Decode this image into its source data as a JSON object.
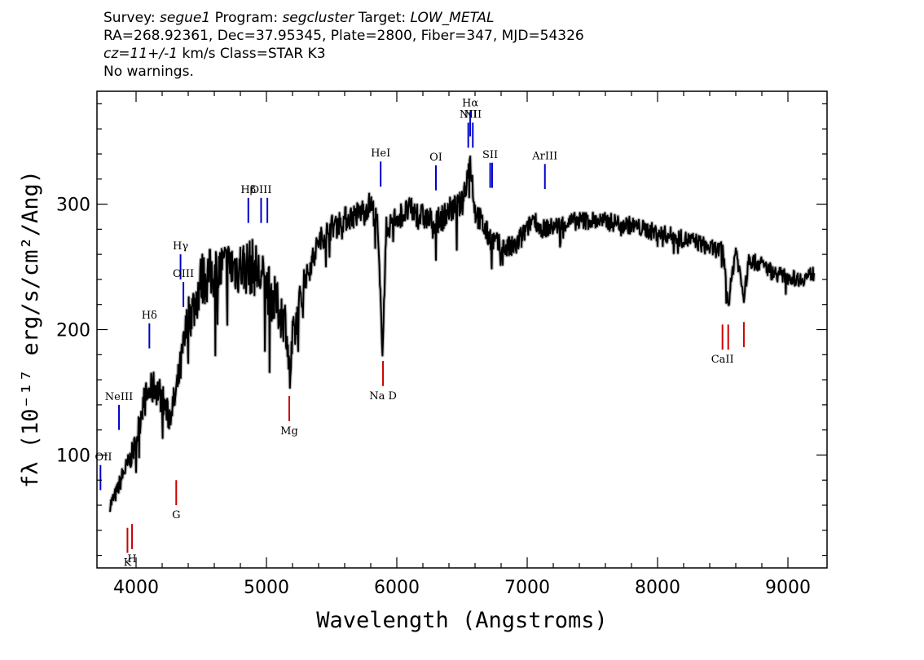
{
  "header": {
    "line1": {
      "survey_label": "Survey: ",
      "survey": "segue1",
      "program_label": " Program: ",
      "program": "segcluster",
      "target_label": " Target: ",
      "target": "LOW_METAL"
    },
    "line2": "RA=268.92361, Dec=37.95345, Plate=2800, Fiber=347, MJD=54326",
    "line3": {
      "cz": "cz=11+/-1",
      "rest": " km/s Class=STAR K3"
    },
    "line4": "No warnings."
  },
  "chart_data": {
    "type": "line",
    "xlabel": "Wavelength (Angstroms)",
    "ylabel": "fλ (10⁻¹⁷ erg/s/cm²/Ang)",
    "xlim": [
      3700,
      9300
    ],
    "ylim": [
      10,
      390
    ],
    "x_ticks": [
      4000,
      5000,
      6000,
      7000,
      8000,
      9000
    ],
    "y_ticks": [
      100,
      200,
      300
    ],
    "grid": false,
    "series": [
      {
        "color": "#000000",
        "x": [
          3800,
          3850,
          3900,
          3950,
          4000,
          4050,
          4100,
          4150,
          4200,
          4250,
          4300,
          4350,
          4400,
          4450,
          4500,
          4600,
          4700,
          4800,
          4900,
          5000,
          5100,
          5150,
          5180,
          5200,
          5300,
          5400,
          5500,
          5600,
          5700,
          5800,
          5850,
          5890,
          5920,
          6000,
          6100,
          6200,
          6300,
          6400,
          6500,
          6563,
          6600,
          6700,
          6800,
          6900,
          7000,
          7050,
          7100,
          7200,
          7300,
          7400,
          7500,
          7600,
          7700,
          7800,
          7900,
          8000,
          8100,
          8200,
          8300,
          8400,
          8500,
          8542,
          8600,
          8662,
          8700,
          8800,
          8900,
          9000,
          9100,
          9200
        ],
        "y": [
          60,
          70,
          85,
          95,
          110,
          140,
          150,
          155,
          145,
          130,
          145,
          175,
          210,
          220,
          240,
          245,
          250,
          250,
          250,
          235,
          215,
          205,
          160,
          190,
          240,
          270,
          282,
          288,
          292,
          300,
          285,
          185,
          280,
          290,
          295,
          290,
          285,
          295,
          300,
          335,
          295,
          275,
          265,
          265,
          280,
          290,
          280,
          282,
          285,
          287,
          287,
          286,
          285,
          283,
          280,
          277,
          275,
          272,
          270,
          265,
          263,
          220,
          265,
          225,
          255,
          252,
          245,
          242,
          240,
          245
        ]
      }
    ],
    "lines": [
      {
        "label": "OII",
        "x": 3727,
        "color": "#0000cc",
        "y1": 72,
        "y2": 92,
        "label_side": "top"
      },
      {
        "label": "NeIII",
        "x": 3869,
        "color": "#0000cc",
        "y1": 120,
        "y2": 140,
        "label_side": "top"
      },
      {
        "label": "Hδ",
        "x": 4102,
        "color": "#0000cc",
        "y1": 185,
        "y2": 205,
        "label_side": "top"
      },
      {
        "label": "Hγ",
        "x": 4341,
        "color": "#0000cc",
        "y1": 240,
        "y2": 260,
        "label_side": "top"
      },
      {
        "label": "OIII",
        "x": 4363,
        "color": "#0000cc",
        "y1": 218,
        "y2": 238,
        "label_side": "top"
      },
      {
        "label": "Hβ",
        "x": 4861,
        "color": "#0000cc",
        "y1": 285,
        "y2": 305,
        "label_side": "top"
      },
      {
        "label": "OIII",
        "x": 4959,
        "color": "#0000cc",
        "y1": 285,
        "y2": 305,
        "label_side": "top"
      },
      {
        "label": "",
        "x": 5007,
        "color": "#0000cc",
        "y1": 285,
        "y2": 305,
        "label_side": "top"
      },
      {
        "label": "HeI",
        "x": 5876,
        "color": "#0000cc",
        "y1": 314,
        "y2": 334,
        "label_side": "top"
      },
      {
        "label": "OI",
        "x": 6300,
        "color": "#0000cc",
        "y1": 311,
        "y2": 331,
        "label_side": "top"
      },
      {
        "label": "NII",
        "x": 6548,
        "color": "#0000cc",
        "y1": 345,
        "y2": 365,
        "label_side": "top"
      },
      {
        "label": "Hα",
        "x": 6563,
        "color": "#0000cc",
        "y1": 354,
        "y2": 374,
        "label_side": "top"
      },
      {
        "label": "NII",
        "x": 6583,
        "color": "#0000cc",
        "y1": 345,
        "y2": 365,
        "label_side": "top"
      },
      {
        "label": "SII",
        "x": 6716,
        "color": "#0000cc",
        "y1": 313,
        "y2": 333,
        "label_side": "top"
      },
      {
        "label": "",
        "x": 6731,
        "color": "#0000cc",
        "y1": 313,
        "y2": 333,
        "label_side": "top"
      },
      {
        "label": "ArIII",
        "x": 7136,
        "color": "#0000cc",
        "y1": 312,
        "y2": 332,
        "label_side": "top"
      },
      {
        "label": "K",
        "x": 3934,
        "color": "#cc0000",
        "y1": 22,
        "y2": 42,
        "label_side": "bottom"
      },
      {
        "label": "H",
        "x": 3969,
        "color": "#cc0000",
        "y1": 25,
        "y2": 45,
        "label_side": "bottom"
      },
      {
        "label": "G",
        "x": 4308,
        "color": "#cc0000",
        "y1": 60,
        "y2": 80,
        "label_side": "bottom"
      },
      {
        "label": "Mg",
        "x": 5175,
        "color": "#cc0000",
        "y1": 127,
        "y2": 147,
        "label_side": "bottom"
      },
      {
        "label": "Na D",
        "x": 5894,
        "color": "#cc0000",
        "y1": 155,
        "y2": 175,
        "label_side": "bottom"
      },
      {
        "label": "CaII",
        "x": 8498,
        "color": "#cc0000",
        "y1": 184,
        "y2": 204,
        "label_side": "bottom"
      },
      {
        "label": "",
        "x": 8542,
        "color": "#cc0000",
        "y1": 184,
        "y2": 204,
        "label_side": "bottom"
      },
      {
        "label": "",
        "x": 8662,
        "color": "#cc0000",
        "y1": 186,
        "y2": 206,
        "label_side": "bottom"
      }
    ]
  }
}
